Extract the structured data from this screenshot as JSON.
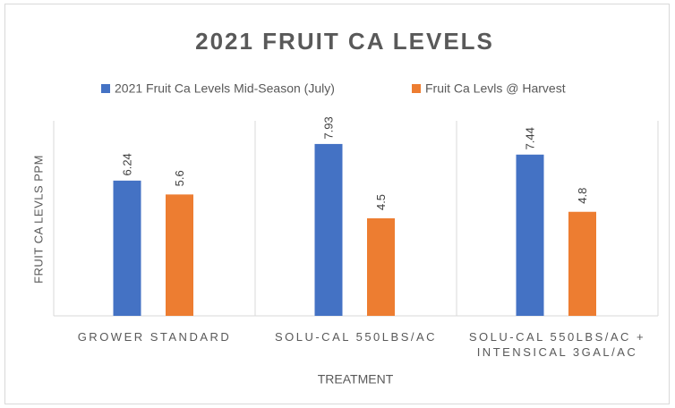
{
  "chart_data": {
    "type": "bar",
    "title": "2021 FRUIT CA LEVELS",
    "x_label": "TREATMENT",
    "y_label": "FRUIT CA LEVLS PPM",
    "categories": [
      "GROWER STANDARD",
      "SOLU-CAL 550LBS/AC",
      "SOLU-CAL 550LBS/AC + INTENSICAL 3GAL/AC"
    ],
    "series": [
      {
        "name": "2021 Fruit Ca Levels Mid-Season (July)",
        "color": "#4472c4",
        "values": [
          6.24,
          7.93,
          7.44
        ]
      },
      {
        "name": "Fruit Ca Levls @ Harvest",
        "color": "#ed7d31",
        "values": [
          5.6,
          4.5,
          4.8
        ]
      }
    ],
    "ylim": [
      0,
      9
    ],
    "legend": "top"
  }
}
